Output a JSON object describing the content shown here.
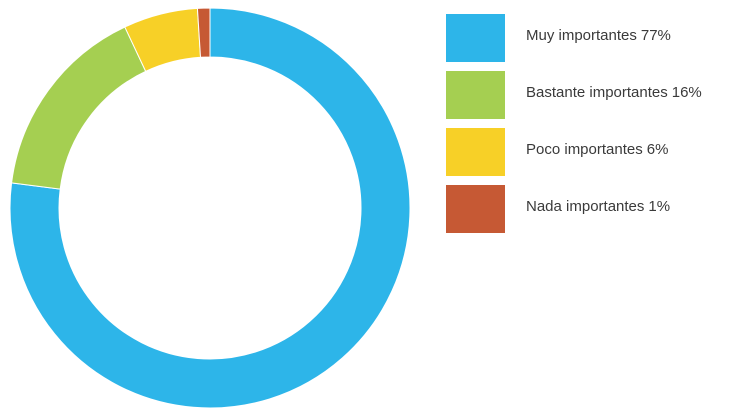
{
  "chart_data": {
    "type": "pie",
    "variant": "donut",
    "legend_position": "right",
    "categories": [
      "Muy importantes",
      "Bastante importantes",
      "Poco importantes",
      "Nada importantes"
    ],
    "values": [
      77,
      16,
      6,
      1
    ],
    "unit": "%",
    "colors": [
      "#2db5e9",
      "#a5cf51",
      "#f7d027",
      "#c65934"
    ],
    "labels": [
      {
        "name": "Muy importantes",
        "value_text": "77%"
      },
      {
        "name": "Bastante importantes",
        "value_text": "16%"
      },
      {
        "name": "Poco importantes",
        "value_text": "6%"
      },
      {
        "name": "Nada importantes",
        "value_text": "1%"
      }
    ]
  }
}
